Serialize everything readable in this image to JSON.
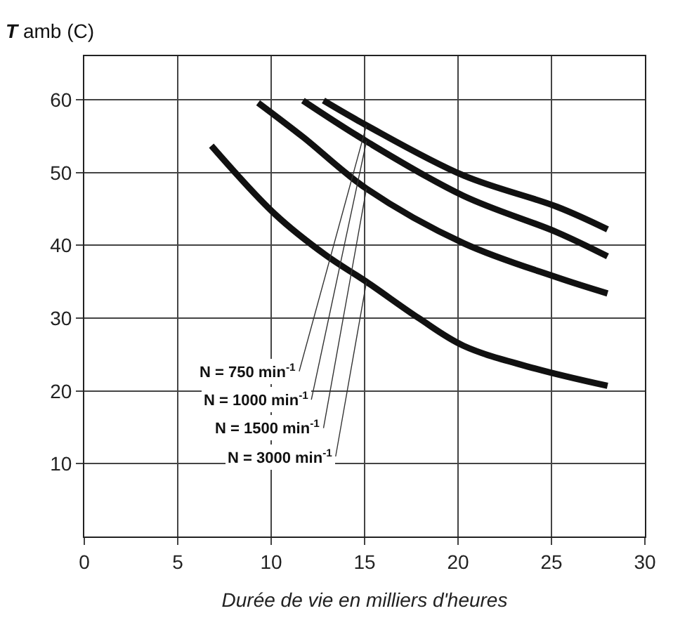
{
  "chart_data": {
    "type": "line",
    "ylabel": "T amb (C)",
    "xlabel": "Durée de vie en milliers d'heures",
    "xlim": [
      0,
      30
    ],
    "xticks": [
      0,
      5,
      10,
      15,
      20,
      25,
      30
    ],
    "ylim": [
      0,
      66
    ],
    "yticks": [
      10,
      20,
      30,
      40,
      50,
      60
    ],
    "grid": true,
    "legend": false,
    "marker": "none",
    "line_style": "solid",
    "series": [
      {
        "name": "N = 750 min$^{-1}$",
        "color": "#111111",
        "x": [
          12.8,
          15.1,
          20.3,
          25.3,
          28.0
        ],
        "values": [
          59.9,
          56.5,
          49.6,
          45.3,
          42.2
        ]
      },
      {
        "name": "N = 1000 min$^{-1}$",
        "color": "#111111",
        "x": [
          11.7,
          15.1,
          20.3,
          25.3,
          28.0
        ],
        "values": [
          59.9,
          54.3,
          46.8,
          41.8,
          38.5
        ]
      },
      {
        "name": "N = 1500 min$^{-1}$",
        "color": "#111111",
        "x": [
          9.3,
          11.7,
          15.1,
          20.3,
          25.3,
          28.0
        ],
        "values": [
          59.6,
          54.9,
          47.8,
          40.3,
          35.6,
          33.4
        ]
      },
      {
        "name": "N = 3000 min$^{-1}$",
        "color": "#111111",
        "x": [
          6.8,
          10.2,
          12.9,
          15.1,
          17.9,
          20.3,
          24.1,
          28.0
        ],
        "values": [
          53.7,
          44.3,
          38.7,
          35.0,
          30.0,
          26.2,
          23.1,
          20.7
        ]
      }
    ]
  }
}
